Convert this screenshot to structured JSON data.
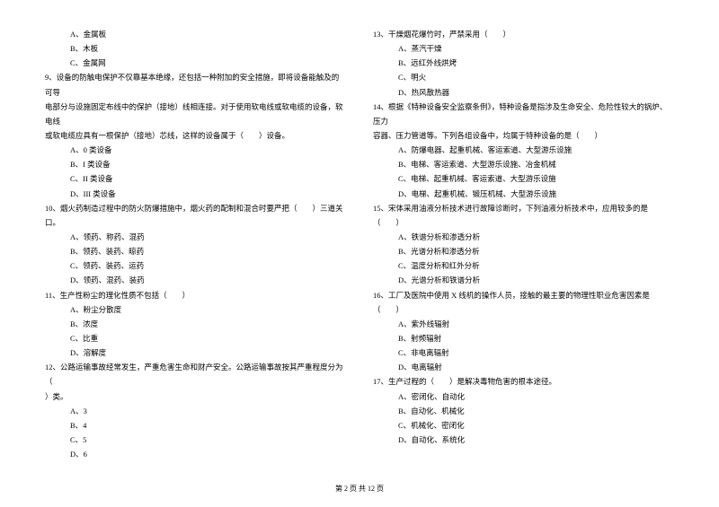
{
  "left_column": {
    "q8_options": [
      "A、金属板",
      "B、木板",
      "C、金属网"
    ],
    "q9": {
      "text1": "9、设备的防触电保护不仅靠基本绝缘，还包括一种附加的安全措施，即将设备能触及的可导",
      "text2": "电部分与设施固定布线中的保护（接地）线相连接。对于使用软电线或软电缆的设备，软电线",
      "text3": "或软电缆应具有一根保护（接地）芯线，这样的设备属于（　　）设备。",
      "options": [
        "A、0 类设备",
        "B、I 类设备",
        "C、II 类设备",
        "D、III 类设备"
      ]
    },
    "q10": {
      "text": "10、烟火药制造过程中的防火防爆措施中，烟火药的配制和混合时要严把（　　）三道关口。",
      "options": [
        "A、领药、称药、混药",
        "B、领药、装药、晾药",
        "C、领药、装药、运药",
        "D、领药、混药、装药"
      ]
    },
    "q11": {
      "text": "11、生产性粉尘的理化性质不包括（　　）",
      "options": [
        "A、粉尘分散度",
        "B、浓度",
        "C、比重",
        "D、溶解度"
      ]
    },
    "q12": {
      "text1": "12、公路运输事故经常发生，严重危害生命和财产安全。公路运输事故按其严重程度分为（　　",
      "text2": "）类。",
      "options": [
        "A、3",
        "B、4",
        "C、5",
        "D、6"
      ]
    }
  },
  "right_column": {
    "q13": {
      "text": "13、干燥烟花爆竹时，严禁采用（　　）",
      "options": [
        "A、蒸汽干燥",
        "B、远红外线烘烤",
        "C、明火",
        "D、热风散热器"
      ]
    },
    "q14": {
      "text1": "14、根据《特种设备安全监察条例》，特种设备是指涉及生命安全、危险性较大的锅炉、压力",
      "text2": "容器、压力管道等。下列各组设备中，均属于特种设备的是（　　）",
      "options": [
        "A、防爆电器、起重机械、客运索道、大型游乐设施",
        "B、电梯、客运索道、大型游乐设施、冶金机械",
        "C、电梯、起重机械、客运索道、大型游乐设施",
        "D、电梯、起重机械、锻压机械、大型游乐设施"
      ]
    },
    "q15": {
      "text": "15、宋体采用油液分析技术进行故障诊断时，下列油液分析技术中，应用较多的是（　　）",
      "options": [
        "A、铁谱分析和渗透分析",
        "B、光谱分析和渗透分析",
        "C、温度分析和红外分析",
        "D、光谱分析和铁谱分析"
      ]
    },
    "q16": {
      "text": "16、工厂及医院中使用 X 线机的操作人员，接触的最主要的物理性职业危害因素是（　　）",
      "options": [
        "A、紫外线辐射",
        "B、射频辐射",
        "C、非电离辐射",
        "D、电离辐射"
      ]
    },
    "q17": {
      "text": "17、生产过程的（　　）是解决毒物危害的根本途径。",
      "options": [
        "A、密闭化、自动化",
        "B、自动化、机械化",
        "C、机械化、密闭化",
        "D、自动化、系统化"
      ]
    }
  },
  "footer": "第 2 页 共 12 页"
}
